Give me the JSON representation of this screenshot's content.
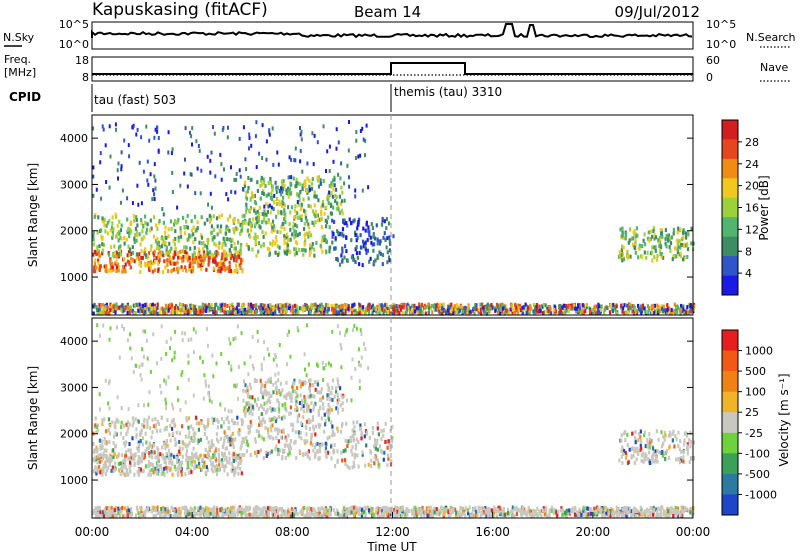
{
  "header": {
    "station": "Kapuskasing (fitACF)",
    "beam": "Beam 14",
    "date": "09/Jul/2012"
  },
  "noise_panel": {
    "left_label": "N.Sky",
    "right_label": "N.Search",
    "left_ticks": [
      "10^5",
      "10^0"
    ],
    "right_ticks": [
      "10^5",
      "10^0"
    ]
  },
  "freq_panel": {
    "left_label": "Freq.",
    "left_unit": "[MHz]",
    "right_label": "Nave",
    "left_ticks": [
      "18",
      "8"
    ],
    "right_ticks": [
      "60",
      "0"
    ]
  },
  "cpid": {
    "label": "CPID",
    "segments": [
      "tau (fast) 503",
      "themis (tau) 3310"
    ]
  },
  "x_axis": {
    "label": "Time UT",
    "ticks": [
      "00:00",
      "04:00",
      "08:00",
      "12:00",
      "16:00",
      "20:00",
      "00:00"
    ]
  },
  "y_axis": {
    "label": "Slant Range [km]",
    "ticks": [
      "1000",
      "2000",
      "3000",
      "4000"
    ]
  },
  "power_scale": {
    "label": "Power [dB]",
    "ticks": [
      "4",
      "8",
      "12",
      "16",
      "20",
      "24",
      "28"
    ],
    "colors": [
      "#1a1ae6",
      "#2f55c8",
      "#3c8c64",
      "#52b46e",
      "#9bd23c",
      "#f0c81e",
      "#f08c14",
      "#e6461e",
      "#d21e1e"
    ]
  },
  "velocity_scale": {
    "label": "Velocity [m s⁻¹]",
    "ticks": [
      "1000",
      "500",
      "100",
      "25",
      "-25",
      "-100",
      "-500",
      "-1000"
    ],
    "colors": [
      "#1e46c8",
      "#2d7aa0",
      "#3ca05a",
      "#6ed23c",
      "#c8c8c0",
      "#f0b428",
      "#f08214",
      "#f05a14",
      "#e61e1e"
    ]
  },
  "chart_data": {
    "type": "heatmap",
    "x_range": [
      "00:00",
      "24:00"
    ],
    "y_range_km": [
      180,
      4500
    ],
    "cpid_change_time": "12:00",
    "power_bands": [
      {
        "t0": 0.0,
        "t1": 6.0,
        "r0": 1150,
        "r1": 1600,
        "level": "high"
      },
      {
        "t0": 0.0,
        "t1": 9.5,
        "r0": 1500,
        "r1": 2400,
        "level": "mid"
      },
      {
        "t0": 6.0,
        "t1": 10.0,
        "r0": 2400,
        "r1": 3200,
        "level": "mid"
      },
      {
        "t0": 9.5,
        "t1": 12.0,
        "r0": 1300,
        "r1": 2300,
        "level": "low"
      },
      {
        "t0": 0.0,
        "t1": 24.0,
        "r0": 250,
        "r1": 450,
        "level": "mixed"
      },
      {
        "t0": 21.0,
        "t1": 24.0,
        "r0": 1400,
        "r1": 2100,
        "level": "mid"
      }
    ]
  }
}
